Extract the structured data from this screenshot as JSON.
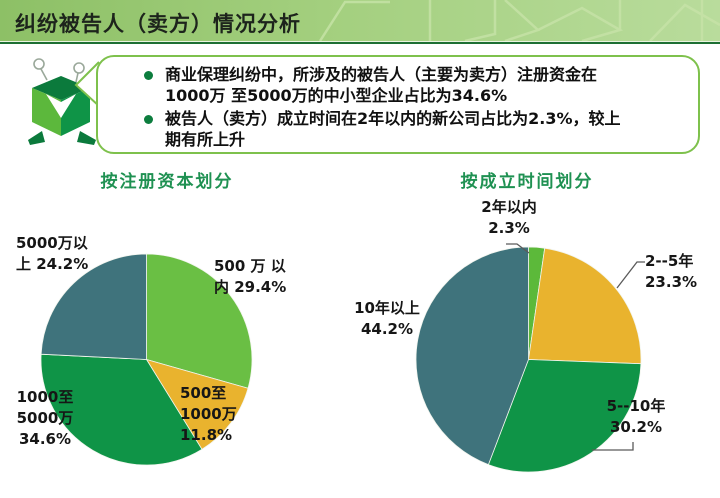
{
  "header": {
    "title": "纠纷被告人（卖方）情况分析"
  },
  "callout": {
    "bullets": [
      "商业保理纠纷中，所涉及的被告人（主要为卖方）注册资金在\n1000万 至5000万的中小型企业占比为34.6%",
      "被告人（卖方）成立时间在2年以内的新公司占比为2.3%，较上\n期有所上升"
    ]
  },
  "colors": {
    "header_green_dark": "#8dc066",
    "header_green_light": "#b9dc9c",
    "divider_green": "#1d6f33",
    "title_green": "#1f9152",
    "bullet_green": "#0c7d3e",
    "bubble_border": "#7ec14c"
  },
  "chart_data": [
    {
      "type": "pie",
      "title": "按注册资本划分",
      "categories": [
        "500万以内",
        "500至1000万",
        "1000至5000万",
        "5000万以上"
      ],
      "values": [
        29.4,
        11.8,
        34.6,
        24.2
      ],
      "colors": [
        "#6abf44",
        "#e9b32e",
        "#0f9447",
        "#3f737c"
      ],
      "start_angle_deg": 0,
      "direction": "clockwise",
      "legend_position": "none",
      "callout_labels": {
        "slice0": "500 万 以\n内 29.4%",
        "slice1": "500至\n1000万\n11.8%",
        "slice2": "1000至\n5000万\n34.6%",
        "slice3": "5000万以\n上 24.2%"
      }
    },
    {
      "type": "pie",
      "title": "按成立时间划分",
      "categories": [
        "2年以内",
        "2--5年",
        "5--10年",
        "10年以上"
      ],
      "values": [
        2.3,
        23.3,
        30.2,
        44.2
      ],
      "colors": [
        "#5cb93a",
        "#e9b32e",
        "#0f9447",
        "#3f737c"
      ],
      "start_angle_deg": 0,
      "direction": "clockwise",
      "legend_position": "none",
      "callout_labels": {
        "slice0": "2年以内\n2.3%",
        "slice1": "2--5年\n23.3%",
        "slice2": "5--10年\n30.2%",
        "slice3": "10年以上\n44.2%"
      }
    }
  ]
}
